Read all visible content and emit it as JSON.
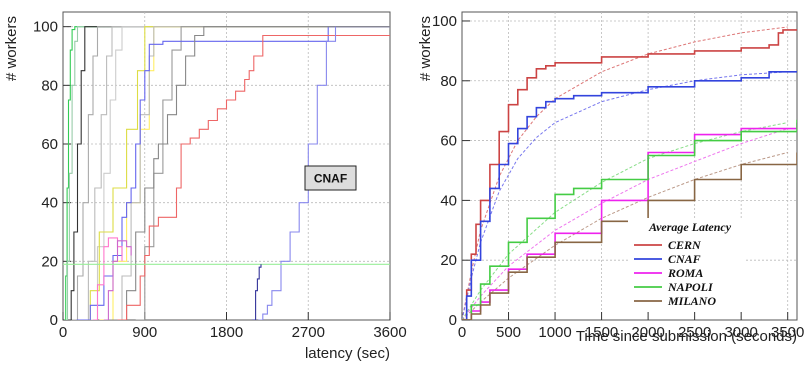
{
  "chart_data": [
    {
      "type": "line",
      "xlabel": "latency (sec)",
      "ylabel": "# workers",
      "xlim": [
        0,
        3600
      ],
      "ylim": [
        0,
        105
      ],
      "xticks": [
        0,
        900,
        1800,
        2700,
        3600
      ],
      "yticks": [
        0,
        20,
        40,
        60,
        80,
        100
      ],
      "grid": true,
      "annotation": "CNAF",
      "series": [
        {
          "color": "#33cc55",
          "x": [
            15,
            30,
            45,
            60,
            80,
            100,
            130,
            3600
          ],
          "y": [
            0,
            15,
            45,
            75,
            92,
            99,
            100,
            100
          ]
        },
        {
          "color": "#99ccaa",
          "x": [
            30,
            50,
            70,
            100,
            130,
            160,
            3600
          ],
          "y": [
            0,
            20,
            50,
            80,
            95,
            100,
            100
          ]
        },
        {
          "color": "#333333",
          "x": [
            60,
            90,
            120,
            160,
            200,
            240,
            3600
          ],
          "y": [
            0,
            10,
            30,
            60,
            85,
            100,
            100
          ]
        },
        {
          "color": "#aaaaaa",
          "x": [
            100,
            160,
            220,
            280,
            330,
            380,
            3600
          ],
          "y": [
            0,
            15,
            40,
            70,
            90,
            100,
            100
          ]
        },
        {
          "color": "#bbbbbb",
          "x": [
            200,
            280,
            350,
            420,
            480,
            540,
            3600
          ],
          "y": [
            0,
            20,
            45,
            70,
            90,
            100,
            100
          ]
        },
        {
          "color": "#cccccc",
          "x": [
            300,
            380,
            450,
            520,
            580,
            650,
            3600
          ],
          "y": [
            0,
            25,
            50,
            75,
            92,
            100,
            100
          ]
        },
        {
          "color": "#dddd44",
          "x": [
            200,
            300,
            400,
            550,
            700,
            820,
            900,
            3600
          ],
          "y": [
            0,
            10,
            30,
            45,
            65,
            85,
            100,
            100
          ]
        },
        {
          "color": "#ffee66",
          "x": [
            400,
            550,
            700,
            850,
            950,
            1000,
            3600
          ],
          "y": [
            0,
            20,
            40,
            65,
            85,
            100,
            100
          ]
        },
        {
          "color": "#bbbbbb",
          "x": [
            550,
            650,
            750,
            850,
            950,
            1000,
            3600
          ],
          "y": [
            0,
            15,
            40,
            70,
            90,
            100,
            100
          ]
        },
        {
          "color": "#999999",
          "x": [
            800,
            900,
            1000,
            1100,
            1200,
            1300,
            3600
          ],
          "y": [
            0,
            25,
            50,
            75,
            92,
            100,
            100
          ]
        },
        {
          "color": "#6666ee",
          "x": [
            150,
            300,
            450,
            550,
            650,
            700,
            750,
            800,
            850,
            900,
            950,
            1100,
            1400,
            2900,
            2920,
            3600
          ],
          "y": [
            0,
            5,
            15,
            22,
            35,
            40,
            45,
            60,
            75,
            85,
            94,
            95,
            95,
            95,
            100,
            100
          ]
        },
        {
          "color": "#888888",
          "x": [
            450,
            700,
            800,
            900,
            1000,
            1050,
            1150,
            1250,
            1350,
            1450,
            1550,
            3600
          ],
          "y": [
            0,
            10,
            30,
            45,
            55,
            60,
            70,
            80,
            90,
            97,
            100,
            100
          ]
        },
        {
          "color": "#ee6666",
          "x": [
            600,
            700,
            850,
            900,
            950,
            1050,
            1150,
            1250,
            1300,
            1400,
            1500,
            1600,
            1700,
            1800,
            1900,
            2000,
            2050,
            2100,
            2200,
            3600
          ],
          "y": [
            0,
            5,
            15,
            22,
            32,
            35,
            35,
            45,
            60,
            62,
            65,
            68,
            72,
            75,
            78,
            82,
            85,
            90,
            97,
            97
          ]
        },
        {
          "color": "#ff77cc",
          "x": [
            330,
            380,
            450,
            500,
            550,
            600,
            650
          ],
          "y": [
            0,
            12,
            25,
            28,
            28,
            25,
            20
          ]
        },
        {
          "color": "#cc66cc",
          "x": [
            450,
            500,
            550,
            600,
            650,
            700,
            750
          ],
          "y": [
            0,
            10,
            20,
            27,
            27,
            25,
            22
          ]
        },
        {
          "color": "#8888ee",
          "x": [
            2150,
            2200,
            2250,
            2300,
            2400,
            2500,
            2600,
            2700,
            2800,
            2900,
            3000
          ],
          "y": [
            0,
            2,
            5,
            10,
            20,
            30,
            40,
            60,
            80,
            95,
            100
          ]
        },
        {
          "color": "#99ee99",
          "x": [
            0,
            3600
          ],
          "y": [
            19,
            19
          ]
        },
        {
          "color": "#333399",
          "x": [
            2080,
            2120,
            2140,
            2160,
            2180
          ],
          "y": [
            0,
            10,
            14,
            18,
            19
          ]
        }
      ]
    },
    {
      "type": "line",
      "xlabel": "Time since submission (seconds)",
      "ylabel": "# workers",
      "xlim": [
        0,
        3600
      ],
      "ylim": [
        0,
        103
      ],
      "xticks": [
        0,
        500,
        1000,
        1500,
        2000,
        2500,
        3000,
        3500
      ],
      "yticks": [
        0,
        20,
        40,
        60,
        80,
        100
      ],
      "grid": true,
      "legend": {
        "title": "Average Latency",
        "position": "bottom-right"
      },
      "series": [
        {
          "name": "CERN",
          "color": "#cc4444",
          "x": [
            0,
            50,
            100,
            150,
            200,
            300,
            400,
            500,
            600,
            700,
            800,
            900,
            1000,
            1500,
            2000,
            2500,
            3000,
            3300,
            3400,
            3450,
            3600
          ],
          "y": [
            0,
            10,
            22,
            32,
            40,
            52,
            63,
            72,
            77,
            81,
            84,
            85,
            86,
            88,
            89,
            90,
            91,
            92,
            96,
            97,
            97
          ]
        },
        {
          "name": "CNAF",
          "color": "#3344dd",
          "x": [
            0,
            50,
            100,
            200,
            300,
            400,
            500,
            600,
            700,
            800,
            900,
            1000,
            1200,
            1500,
            2000,
            2500,
            3000,
            3300,
            3600
          ],
          "y": [
            0,
            8,
            20,
            33,
            44,
            52,
            59,
            64,
            68,
            71,
            73,
            74,
            75,
            76,
            78,
            80,
            81,
            83,
            83
          ]
        },
        {
          "name": "ROMA",
          "color": "#ee22ee",
          "x": [
            0,
            100,
            200,
            300,
            500,
            700,
            1000,
            1500,
            2000,
            2500,
            3000,
            3600
          ],
          "y": [
            0,
            3,
            6,
            10,
            17,
            22,
            29,
            40,
            56,
            62,
            64,
            66
          ]
        },
        {
          "name": "NAPOLI",
          "color": "#44cc44",
          "x": [
            0,
            100,
            200,
            300,
            500,
            700,
            1000,
            1200,
            1500,
            2000,
            2500,
            3000,
            3600
          ],
          "y": [
            0,
            5,
            12,
            18,
            26,
            34,
            42,
            44,
            47,
            55,
            60,
            63,
            67
          ]
        },
        {
          "name": "MILANO",
          "color": "#886644",
          "x": [
            0,
            100,
            200,
            300,
            500,
            700,
            1000,
            1500,
            2000,
            2500,
            3000,
            3600
          ],
          "y": [
            0,
            2,
            5,
            9,
            16,
            21,
            26,
            33,
            40,
            47,
            52,
            56
          ]
        }
      ],
      "fits": [
        {
          "color": "#dd7777",
          "x": [
            0,
            100,
            200,
            400,
            600,
            800,
            1000,
            1500,
            2000,
            2500,
            3000,
            3500
          ],
          "y": [
            0,
            16,
            30,
            48,
            60,
            68,
            74,
            83,
            89,
            93,
            96,
            98
          ]
        },
        {
          "color": "#7777ee",
          "x": [
            0,
            100,
            200,
            400,
            600,
            800,
            1000,
            1500,
            2000,
            2500,
            3000,
            3500
          ],
          "y": [
            0,
            14,
            26,
            43,
            54,
            61,
            66,
            73,
            77,
            80,
            82,
            83
          ]
        },
        {
          "color": "#ee77ee",
          "x": [
            0,
            200,
            500,
            1000,
            1500,
            2000,
            2500,
            3000,
            3500
          ],
          "y": [
            0,
            8,
            18,
            30,
            39,
            47,
            53,
            59,
            64
          ]
        },
        {
          "color": "#88dd88",
          "x": [
            0,
            200,
            500,
            1000,
            1500,
            2000,
            2500,
            3000,
            3500
          ],
          "y": [
            0,
            10,
            22,
            36,
            46,
            54,
            59,
            63,
            66
          ]
        },
        {
          "color": "#bb9988",
          "x": [
            0,
            200,
            500,
            1000,
            1500,
            2000,
            2500,
            3000,
            3500
          ],
          "y": [
            0,
            6,
            14,
            25,
            34,
            41,
            47,
            52,
            56
          ]
        }
      ]
    }
  ]
}
